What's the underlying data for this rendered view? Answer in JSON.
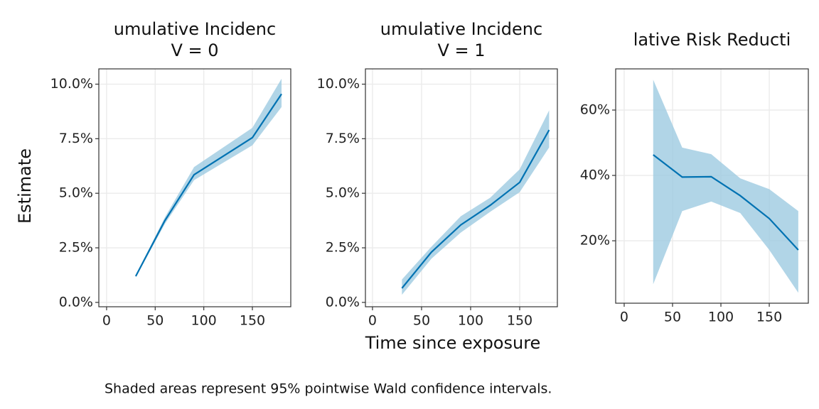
{
  "ylabel": "Estimate",
  "xlabel": "Time since exposure",
  "caption": "Shaded areas represent 95% pointwise Wald confidence intervals.",
  "chart_data": [
    {
      "type": "line",
      "title": "umulative Incidenc",
      "subtitle": "V = 0",
      "color": "#0072B2",
      "band_color": "#9ecae1",
      "grid": true,
      "x": [
        30,
        60,
        90,
        120,
        150,
        180
      ],
      "y": [
        1.2,
        3.75,
        5.85,
        6.7,
        7.55,
        9.55
      ],
      "lower": [
        1.15,
        3.6,
        5.6,
        6.4,
        7.2,
        8.95
      ],
      "upper": [
        1.25,
        3.9,
        6.2,
        7.1,
        8.0,
        10.25
      ],
      "xlim": [
        -8,
        189.5
      ],
      "xticks": [
        0,
        50,
        100,
        150
      ],
      "ylim": [
        -0.2,
        10.7
      ],
      "yticks": [
        {
          "value": 0,
          "label": "0.0%"
        },
        {
          "value": 2.5,
          "label": "2.5%"
        },
        {
          "value": 5,
          "label": "5.0%"
        },
        {
          "value": 7.5,
          "label": "7.5%"
        },
        {
          "value": 10,
          "label": "10.0%"
        }
      ]
    },
    {
      "type": "line",
      "title": "umulative Incidenc",
      "subtitle": "V = 1",
      "color": "#0072B2",
      "band_color": "#9ecae1",
      "grid": true,
      "x": [
        30,
        60,
        90,
        120,
        150,
        180
      ],
      "y": [
        0.65,
        2.3,
        3.55,
        4.45,
        5.5,
        7.9
      ],
      "lower": [
        0.35,
        2.0,
        3.2,
        4.15,
        5.05,
        7.1
      ],
      "upper": [
        1.05,
        2.55,
        3.95,
        4.8,
        6.1,
        8.8
      ],
      "xlim": [
        -7.2,
        188.4
      ],
      "xticks": [
        0,
        50,
        100,
        150
      ],
      "ylim": [
        -0.2,
        10.7
      ],
      "yticks": [
        {
          "value": 0,
          "label": "0.0%"
        },
        {
          "value": 2.5,
          "label": "2.5%"
        },
        {
          "value": 5,
          "label": "5.0%"
        },
        {
          "value": 7.5,
          "label": "7.5%"
        },
        {
          "value": 10,
          "label": "10.0%"
        }
      ]
    },
    {
      "type": "line",
      "title": "lative Risk Reducti",
      "color": "#0072B2",
      "band_color": "#9ecae1",
      "grid": true,
      "x": [
        30,
        60,
        90,
        120,
        150,
        180
      ],
      "y": [
        46.3,
        39.5,
        39.6,
        33.8,
        26.8,
        17.2
      ],
      "lower": [
        6.7,
        29.1,
        32.0,
        28.5,
        17.2,
        4.1
      ],
      "upper": [
        69.3,
        48.5,
        46.5,
        39.1,
        35.8,
        29.1
      ],
      "xlim": [
        -8.8,
        190.4
      ],
      "xticks": [
        0,
        50,
        100,
        150
      ],
      "ylim": [
        0.9,
        72.6
      ],
      "yticks": [
        {
          "value": 20,
          "label": "20%"
        },
        {
          "value": 40,
          "label": "40%"
        },
        {
          "value": 60,
          "label": "60%"
        }
      ]
    }
  ]
}
